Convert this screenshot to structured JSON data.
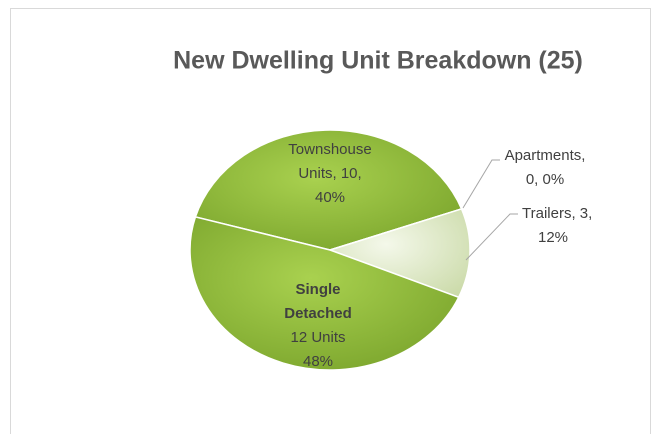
{
  "chart_data": {
    "type": "pie",
    "title": "New Dwelling Unit Breakdown (25)",
    "values": [
      10,
      0,
      3,
      12
    ],
    "value_labels": [
      [
        "Townshouse",
        "Units, 10,",
        "40%"
      ],
      [
        "Apartments,",
        "0, 0%"
      ],
      [
        "Trailers, 3,",
        "12%"
      ],
      [
        "Single",
        "Detached",
        "12 Units",
        "48%"
      ]
    ],
    "colors": [
      "#8db63c",
      "#8db63c",
      "#e3ecd2",
      "#8db63c"
    ]
  }
}
